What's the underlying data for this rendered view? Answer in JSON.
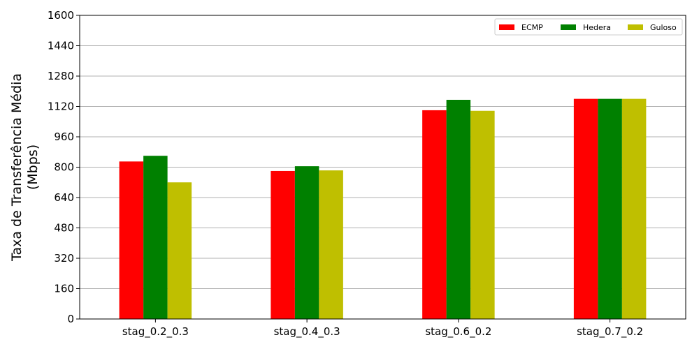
{
  "chart_data": {
    "type": "bar",
    "title": "",
    "xlabel": "",
    "ylabel_lines": [
      "Taxa de Transferência Média",
      "(Mbps)"
    ],
    "categories": [
      "stag_0.2_0.3",
      "stag_0.4_0.3",
      "stag_0.6_0.2",
      "stag_0.7_0.2"
    ],
    "series": [
      {
        "name": "ECMP",
        "color": "#ff0000",
        "values": [
          830,
          780,
          1100,
          1160
        ]
      },
      {
        "name": "Hedera",
        "color": "#008000",
        "values": [
          860,
          805,
          1155,
          1160
        ]
      },
      {
        "name": "Guloso",
        "color": "#bfbf00",
        "values": [
          720,
          783,
          1097,
          1160
        ]
      }
    ],
    "ylim": [
      0,
      1600
    ],
    "yticks": [
      0,
      160,
      320,
      480,
      640,
      800,
      960,
      1120,
      1280,
      1440,
      1600
    ],
    "grid": "y",
    "legend": {
      "position": "top-right",
      "columns": 3
    }
  }
}
